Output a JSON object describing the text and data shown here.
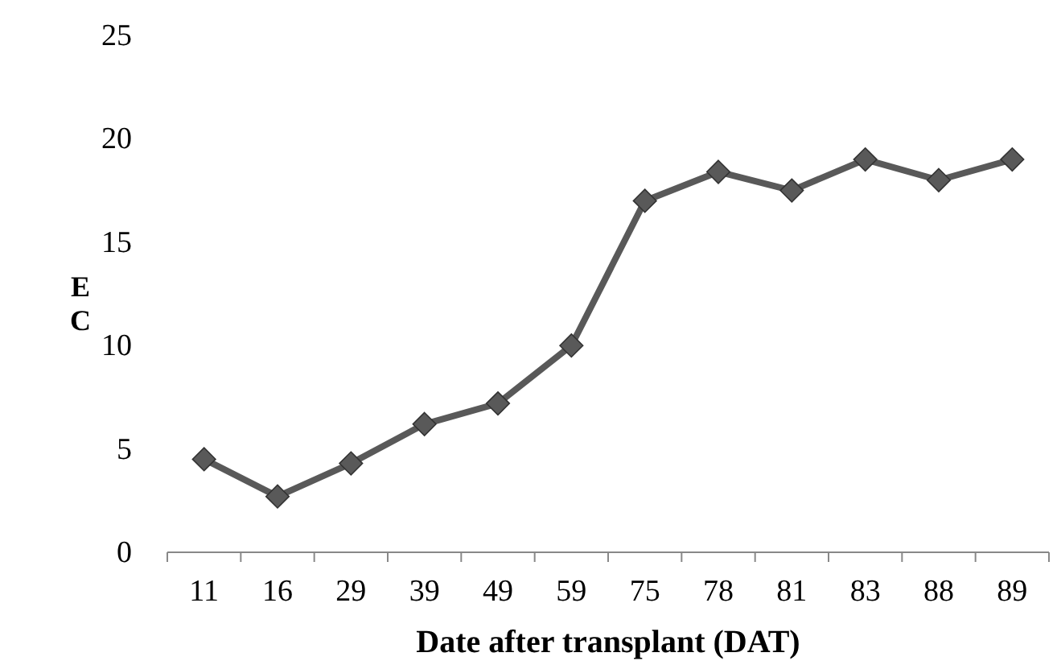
{
  "chart_data": {
    "type": "line",
    "xlabel": "Date after transplant (DAT)",
    "ylabel": "EC",
    "categories": [
      "11",
      "16",
      "29",
      "39",
      "49",
      "59",
      "75",
      "78",
      "81",
      "83",
      "88",
      "89"
    ],
    "series": [
      {
        "color": "#595959",
        "values": [
          4.5,
          2.7,
          4.3,
          6.2,
          7.2,
          10,
          17,
          18.4,
          17.5,
          19,
          18,
          19
        ]
      }
    ],
    "ylim": [
      0,
      25
    ],
    "yticks": [
      0,
      5,
      10,
      15,
      20,
      25
    ],
    "grid": false,
    "marker": "diamond",
    "line_style": "solid"
  }
}
